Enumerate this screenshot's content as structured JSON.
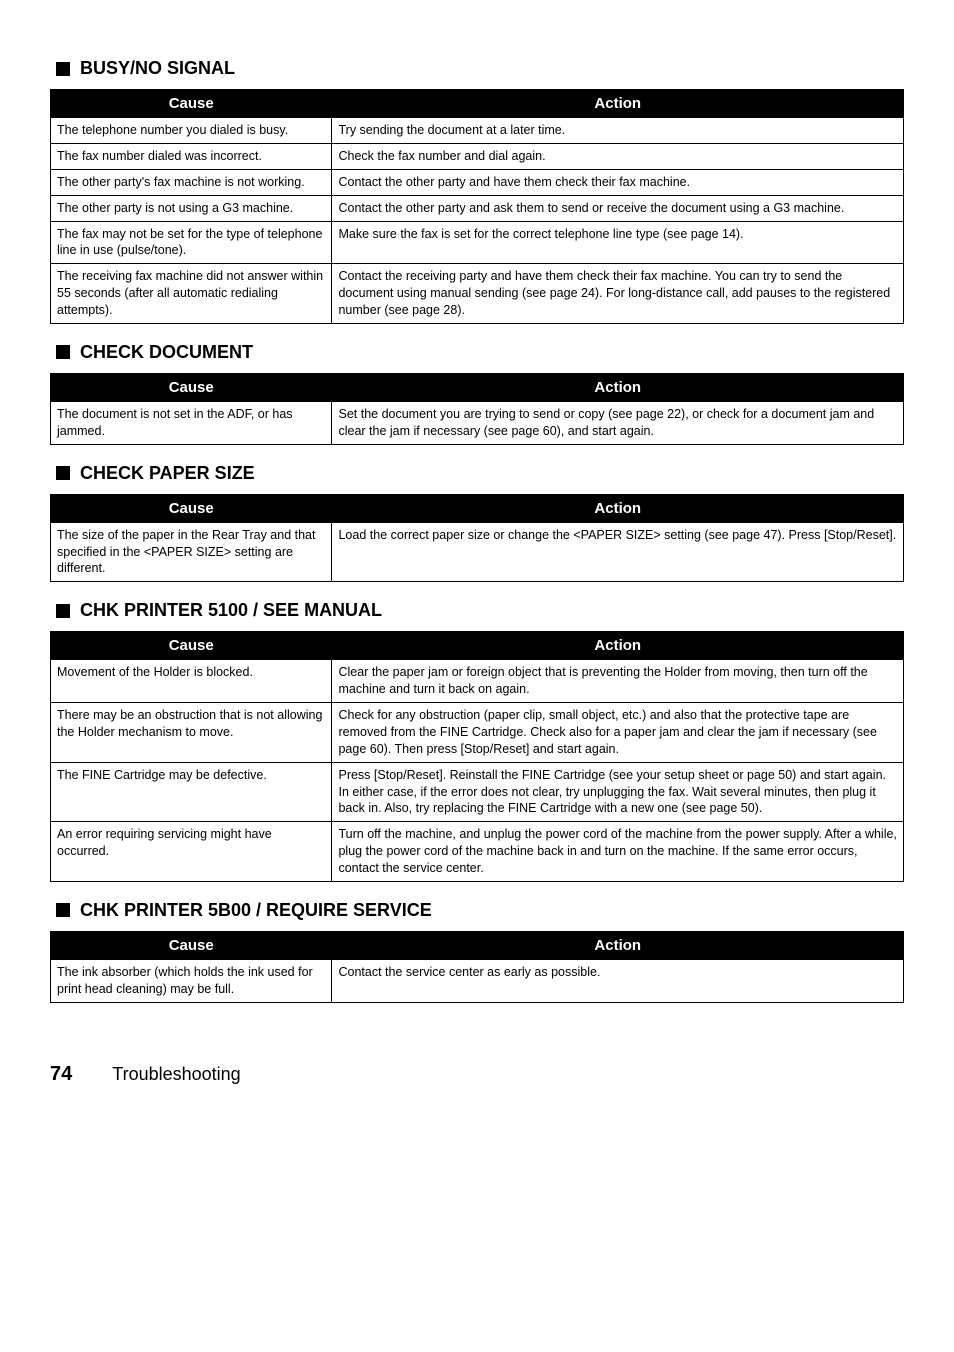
{
  "headers": {
    "cause": "Cause",
    "action": "Action"
  },
  "sections": [
    {
      "title": "BUSY/NO SIGNAL",
      "rows": [
        {
          "cause": "The telephone number you dialed is busy.",
          "action": "Try sending the document at a later time."
        },
        {
          "cause": "The fax number dialed was incorrect.",
          "action": "Check the fax number and dial again."
        },
        {
          "cause": "The other party's fax machine is not working.",
          "action": "Contact the other party and have them check their fax machine."
        },
        {
          "cause": "The other party is not using a G3 machine.",
          "action": "Contact the other party and ask them to send or receive the document using a G3 machine."
        },
        {
          "cause": "The fax may not be set for the type of telephone line in use (pulse/tone).",
          "action": "Make sure the fax is set for the correct telephone line type (see page 14)."
        },
        {
          "cause": "The receiving fax machine did not answer within 55 seconds (after all automatic redialing attempts).",
          "action": "Contact the receiving party and have them check their fax machine. You can try to send the document using manual sending (see page 24). For long-distance call, add pauses to the registered number (see page 28)."
        }
      ]
    },
    {
      "title": "CHECK DOCUMENT",
      "rows": [
        {
          "cause": "The document is not set in the ADF, or has jammed.",
          "action": "Set the document you are trying to send or copy (see page 22), or check for a document jam and clear the jam if necessary (see page 60), and start again."
        }
      ]
    },
    {
      "title": "CHECK PAPER SIZE",
      "rows": [
        {
          "cause": "The size of the paper in the Rear Tray and that specified in the <PAPER SIZE> setting are different.",
          "action": "Load the correct paper size or change the <PAPER SIZE> setting (see page 47). Press [Stop/Reset]."
        }
      ]
    },
    {
      "title": "CHK PRINTER 5100 / SEE MANUAL",
      "rows": [
        {
          "cause": "Movement of the Holder is blocked.",
          "action": "Clear the paper jam or foreign object that is preventing the Holder from moving, then turn off the machine and turn it back on again."
        },
        {
          "cause": "There may be an obstruction that is not allowing the Holder mechanism to move.",
          "action": "Check for any obstruction (paper clip, small object, etc.) and also that the protective tape are removed from the FINE Cartridge. Check also for a paper jam and clear the jam if necessary (see page 60). Then press [Stop/Reset] and start again."
        },
        {
          "cause": "The FINE Cartridge may be defective.",
          "action": "Press [Stop/Reset]. Reinstall the FINE Cartridge (see your setup sheet or page 50) and start again.\nIn either case, if the error does not clear, try unplugging the fax. Wait several minutes, then plug it back in. Also, try replacing the FINE Cartridge with a new one (see page 50)."
        },
        {
          "cause": "An error requiring servicing might have occurred.",
          "action": "Turn off the machine, and unplug the power cord of the machine from the power supply. After a while, plug the power cord of the machine back in and turn on the machine. If the same error occurs, contact the service center."
        }
      ]
    },
    {
      "title": "CHK PRINTER 5B00 / REQUIRE SERVICE",
      "rows": [
        {
          "cause": "The ink absorber (which holds the ink used for print head cleaning) may be full.",
          "action": "Contact the service center as early as possible."
        }
      ]
    }
  ],
  "footer": {
    "page_number": "74",
    "chapter": "Troubleshooting"
  }
}
